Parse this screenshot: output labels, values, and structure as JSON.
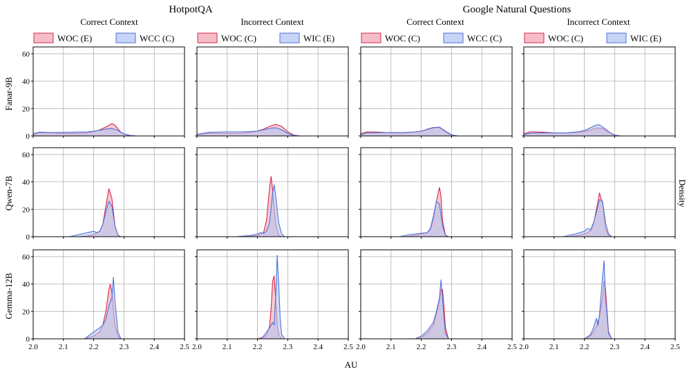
{
  "figure": {
    "group_titles": [
      "HotpotQA",
      "Google Natural Questions"
    ],
    "column_titles": [
      "Correct Context",
      "Incorrect Context",
      "Correct Context",
      "Incorrect Context"
    ],
    "row_labels": [
      "Fanar-9B",
      "Qwen-7B",
      "Gemma-12B"
    ],
    "xlabel": "AU",
    "ylabel": "Density"
  },
  "colors": {
    "red_line": "#d6284a",
    "red_fill": "#f2a7b6",
    "blue_line": "#4c72d9",
    "blue_fill": "#b4c6f2",
    "overlap_fill": "#a893c7",
    "grid": "#b0b0b0"
  },
  "chart_data": {
    "type": "area",
    "subtype": "kde-density-grid",
    "xlim": [
      2.0,
      2.5
    ],
    "ylim": [
      0,
      65
    ],
    "xticks": [
      "2.0",
      "2.1",
      "2.2",
      "2.3",
      "2.4",
      "2.5"
    ],
    "yticks": [
      "0",
      "20",
      "40",
      "60"
    ],
    "legends": [
      [
        "WOC (E)",
        "WCC (C)"
      ],
      [
        "WOC (C)",
        "WIC (E)"
      ],
      [
        "WOC (C)",
        "WCC (C)"
      ],
      [
        "WOC (C)",
        "WIC (E)"
      ]
    ],
    "panels": [
      {
        "row": 0,
        "col": 0,
        "series": [
          {
            "name": "WOC (E)",
            "color": "red",
            "x": [
              2.0,
              2.02,
              2.06,
              2.1,
              2.14,
              2.18,
              2.2,
              2.22,
              2.24,
              2.26,
              2.27,
              2.29,
              2.31,
              2.33
            ],
            "y": [
              1,
              2.4,
              2.2,
              1.8,
              1.8,
              2.2,
              3,
              4.5,
              6.5,
              9,
              8,
              2.5,
              0.5,
              0
            ]
          },
          {
            "name": "WCC (C)",
            "color": "blue",
            "x": [
              2.0,
              2.02,
              2.06,
              2.1,
              2.14,
              2.18,
              2.2,
              2.22,
              2.24,
              2.26,
              2.28,
              2.3,
              2.32,
              2.34
            ],
            "y": [
              1.5,
              2.8,
              2.5,
              2.6,
              2.8,
              3,
              3.5,
              4.2,
              5,
              5.5,
              4,
              1.5,
              0.4,
              0
            ]
          }
        ]
      },
      {
        "row": 0,
        "col": 1,
        "series": [
          {
            "name": "WOC (C)",
            "color": "red",
            "x": [
              2.0,
              2.04,
              2.1,
              2.14,
              2.18,
              2.2,
              2.22,
              2.24,
              2.26,
              2.28,
              2.3,
              2.32,
              2.34
            ],
            "y": [
              1,
              2,
              1.8,
              2,
              2.6,
              3.6,
              5,
              7,
              8.5,
              7,
              3,
              0.6,
              0
            ]
          },
          {
            "name": "WIC (E)",
            "color": "blue",
            "x": [
              2.0,
              2.04,
              2.1,
              2.14,
              2.18,
              2.2,
              2.22,
              2.24,
              2.26,
              2.28,
              2.3,
              2.32,
              2.34
            ],
            "y": [
              1.2,
              2.6,
              3,
              3,
              3.2,
              3.6,
              4.5,
              5.5,
              6,
              4.5,
              1.8,
              0.4,
              0
            ]
          }
        ]
      },
      {
        "row": 0,
        "col": 2,
        "series": [
          {
            "name": "WOC (C)",
            "color": "red",
            "x": [
              2.0,
              2.02,
              2.06,
              2.1,
              2.14,
              2.18,
              2.2,
              2.22,
              2.24,
              2.26,
              2.28,
              2.3,
              2.32
            ],
            "y": [
              1.5,
              3,
              2.8,
              2.3,
              2.2,
              2.8,
              3.5,
              5,
              6.2,
              6,
              3,
              0.6,
              0
            ]
          },
          {
            "name": "WCC (C)",
            "color": "blue",
            "x": [
              2.0,
              2.02,
              2.06,
              2.1,
              2.14,
              2.18,
              2.2,
              2.22,
              2.24,
              2.26,
              2.28,
              2.3,
              2.32
            ],
            "y": [
              1,
              2.2,
              2.4,
              2.5,
              2.5,
              3,
              3.6,
              4.8,
              6,
              6.5,
              3.5,
              0.8,
              0
            ]
          }
        ]
      },
      {
        "row": 0,
        "col": 3,
        "series": [
          {
            "name": "WOC (C)",
            "color": "red",
            "x": [
              2.0,
              2.02,
              2.06,
              2.1,
              2.14,
              2.18,
              2.2,
              2.22,
              2.24,
              2.26,
              2.28,
              2.3,
              2.32
            ],
            "y": [
              1.5,
              3,
              2.8,
              2.2,
              2.2,
              2.6,
              3.2,
              4.5,
              5.8,
              5.5,
              2.8,
              0.6,
              0
            ]
          },
          {
            "name": "WIC (E)",
            "color": "blue",
            "x": [
              2.0,
              2.02,
              2.06,
              2.1,
              2.14,
              2.18,
              2.2,
              2.22,
              2.24,
              2.25,
              2.27,
              2.29,
              2.31
            ],
            "y": [
              1,
              2,
              2.2,
              2.2,
              2.3,
              3,
              4,
              6,
              8,
              8,
              5,
              1.5,
              0
            ]
          }
        ]
      },
      {
        "row": 1,
        "col": 0,
        "series": [
          {
            "name": "WOC (E)",
            "color": "red",
            "x": [
              2.15,
              2.18,
              2.2,
              2.22,
              2.23,
              2.24,
              2.25,
              2.26,
              2.27,
              2.28,
              2.29
            ],
            "y": [
              0,
              0.5,
              1.5,
              4,
              9,
              22,
              35,
              28,
              8,
              1,
              0
            ]
          },
          {
            "name": "WCC (C)",
            "color": "blue",
            "x": [
              2.12,
              2.15,
              2.18,
              2.2,
              2.21,
              2.22,
              2.23,
              2.24,
              2.25,
              2.26,
              2.27,
              2.28,
              2.29
            ],
            "y": [
              0,
              1.5,
              3,
              4,
              3,
              4,
              9,
              18,
              26,
              22,
              8,
              1,
              0
            ]
          }
        ]
      },
      {
        "row": 1,
        "col": 1,
        "series": [
          {
            "name": "WOC (C)",
            "color": "red",
            "x": [
              2.15,
              2.18,
              2.2,
              2.21,
              2.22,
              2.23,
              2.24,
              2.245,
              2.25,
              2.26,
              2.27,
              2.28
            ],
            "y": [
              0,
              0.5,
              1,
              2,
              3,
              12,
              36,
              44,
              34,
              9,
              1,
              0
            ]
          },
          {
            "name": "WIC (E)",
            "color": "blue",
            "x": [
              2.13,
              2.18,
              2.2,
              2.21,
              2.22,
              2.23,
              2.24,
              2.25,
              2.255,
              2.26,
              2.27,
              2.28,
              2.29
            ],
            "y": [
              0,
              1,
              2,
              3,
              2.5,
              4,
              10,
              32,
              38,
              30,
              10,
              2,
              0
            ]
          }
        ]
      },
      {
        "row": 1,
        "col": 2,
        "series": [
          {
            "name": "WOC (C)",
            "color": "red",
            "x": [
              2.15,
              2.18,
              2.2,
              2.22,
              2.23,
              2.24,
              2.25,
              2.26,
              2.265,
              2.27,
              2.28,
              2.29
            ],
            "y": [
              0,
              1,
              2,
              3,
              5,
              12,
              26,
              36,
              30,
              12,
              1,
              0
            ]
          },
          {
            "name": "WCC (C)",
            "color": "blue",
            "x": [
              2.13,
              2.16,
              2.2,
              2.22,
              2.23,
              2.24,
              2.25,
              2.26,
              2.27,
              2.28,
              2.29
            ],
            "y": [
              0,
              1.5,
              2.5,
              3,
              6,
              15,
              26,
              24,
              8,
              1,
              0
            ]
          }
        ]
      },
      {
        "row": 1,
        "col": 3,
        "series": [
          {
            "name": "WOC (C)",
            "color": "red",
            "x": [
              2.15,
              2.18,
              2.2,
              2.22,
              2.23,
              2.24,
              2.25,
              2.26,
              2.27,
              2.28,
              2.29
            ],
            "y": [
              0,
              1,
              2,
              4,
              9,
              20,
              32,
              24,
              6,
              1,
              0
            ]
          },
          {
            "name": "WIC (E)",
            "color": "blue",
            "x": [
              2.13,
              2.17,
              2.2,
              2.21,
              2.22,
              2.23,
              2.24,
              2.25,
              2.26,
              2.27,
              2.28,
              2.29
            ],
            "y": [
              0,
              2,
              4,
              6,
              5,
              10,
              18,
              27,
              26,
              10,
              2,
              0
            ]
          }
        ]
      },
      {
        "row": 2,
        "col": 0,
        "series": [
          {
            "name": "WOC (E)",
            "color": "red",
            "x": [
              2.17,
              2.2,
              2.22,
              2.23,
              2.24,
              2.25,
              2.255,
              2.26,
              2.265,
              2.27,
              2.28,
              2.29
            ],
            "y": [
              0,
              2,
              5,
              10,
              20,
              36,
              40,
              34,
              22,
              10,
              2,
              0
            ]
          },
          {
            "name": "WCC (C)",
            "color": "blue",
            "x": [
              2.17,
              2.2,
              2.22,
              2.23,
              2.24,
              2.25,
              2.26,
              2.265,
              2.27,
              2.28,
              2.29
            ],
            "y": [
              0,
              5,
              8,
              10,
              14,
              24,
              30,
              45,
              28,
              5,
              0
            ]
          }
        ]
      },
      {
        "row": 2,
        "col": 1,
        "series": [
          {
            "name": "WOC (C)",
            "color": "red",
            "x": [
              2.2,
              2.22,
              2.23,
              2.24,
              2.245,
              2.25,
              2.255,
              2.26,
              2.265,
              2.27,
              2.28
            ],
            "y": [
              0,
              1,
              3,
              9,
              22,
              42,
              46,
              30,
              10,
              3,
              0
            ]
          },
          {
            "name": "WIC (E)",
            "color": "blue",
            "x": [
              2.21,
              2.22,
              2.23,
              2.24,
              2.25,
              2.255,
              2.26,
              2.265,
              2.27,
              2.275,
              2.28,
              2.29
            ],
            "y": [
              0,
              2,
              5,
              8,
              12,
              10,
              30,
              61,
              40,
              15,
              3,
              0
            ]
          }
        ]
      },
      {
        "row": 2,
        "col": 2,
        "series": [
          {
            "name": "WOC (C)",
            "color": "red",
            "x": [
              2.18,
              2.2,
              2.22,
              2.24,
              2.25,
              2.26,
              2.265,
              2.27,
              2.275,
              2.28,
              2.29
            ],
            "y": [
              0,
              1,
              4,
              10,
              18,
              28,
              36,
              36,
              24,
              8,
              0
            ]
          },
          {
            "name": "WCC (C)",
            "color": "blue",
            "x": [
              2.18,
              2.2,
              2.22,
              2.24,
              2.25,
              2.26,
              2.265,
              2.27,
              2.275,
              2.28,
              2.29
            ],
            "y": [
              0,
              2,
              6,
              12,
              20,
              30,
              43,
              30,
              15,
              4,
              0
            ]
          }
        ]
      },
      {
        "row": 2,
        "col": 3,
        "series": [
          {
            "name": "WOC (C)",
            "color": "red",
            "x": [
              2.2,
              2.22,
              2.23,
              2.24,
              2.25,
              2.26,
              2.265,
              2.27,
              2.275,
              2.28,
              2.29
            ],
            "y": [
              0,
              2,
              5,
              9,
              16,
              30,
              42,
              36,
              20,
              5,
              0
            ]
          },
          {
            "name": "WIC (E)",
            "color": "blue",
            "x": [
              2.2,
              2.22,
              2.23,
              2.24,
              2.245,
              2.25,
              2.26,
              2.265,
              2.27,
              2.28,
              2.29
            ],
            "y": [
              0,
              3,
              8,
              15,
              10,
              18,
              45,
              57,
              30,
              4,
              0
            ]
          }
        ]
      }
    ]
  }
}
